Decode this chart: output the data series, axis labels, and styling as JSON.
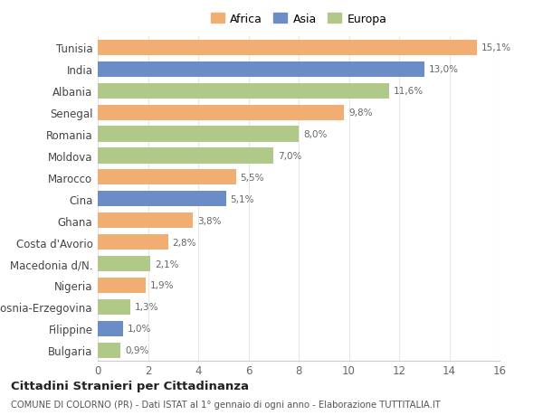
{
  "countries": [
    "Tunisia",
    "India",
    "Albania",
    "Senegal",
    "Romania",
    "Moldova",
    "Marocco",
    "Cina",
    "Ghana",
    "Costa d'Avorio",
    "Macedonia d/N.",
    "Nigeria",
    "Bosnia-Erzegovina",
    "Filippine",
    "Bulgaria"
  ],
  "values": [
    15.1,
    13.0,
    11.6,
    9.8,
    8.0,
    7.0,
    5.5,
    5.1,
    3.8,
    2.8,
    2.1,
    1.9,
    1.3,
    1.0,
    0.9
  ],
  "labels": [
    "15,1%",
    "13,0%",
    "11,6%",
    "9,8%",
    "8,0%",
    "7,0%",
    "5,5%",
    "5,1%",
    "3,8%",
    "2,8%",
    "2,1%",
    "1,9%",
    "1,3%",
    "1,0%",
    "0,9%"
  ],
  "continents": [
    "Africa",
    "Asia",
    "Europa",
    "Africa",
    "Europa",
    "Europa",
    "Africa",
    "Asia",
    "Africa",
    "Africa",
    "Europa",
    "Africa",
    "Europa",
    "Asia",
    "Europa"
  ],
  "colors": {
    "Africa": "#F2AE72",
    "Asia": "#6B8CC7",
    "Europa": "#B0C888"
  },
  "background_color": "#ffffff",
  "grid_color": "#e8e8e8",
  "xlim": [
    0,
    16
  ],
  "xticks": [
    0,
    2,
    4,
    6,
    8,
    10,
    12,
    14,
    16
  ],
  "title": "Cittadini Stranieri per Cittadinanza",
  "subtitle": "COMUNE DI COLORNO (PR) - Dati ISTAT al 1° gennaio di ogni anno - Elaborazione TUTTITALIA.IT",
  "legend_entries": [
    "Africa",
    "Asia",
    "Europa"
  ],
  "figsize": [
    6.0,
    4.6
  ],
  "dpi": 100
}
